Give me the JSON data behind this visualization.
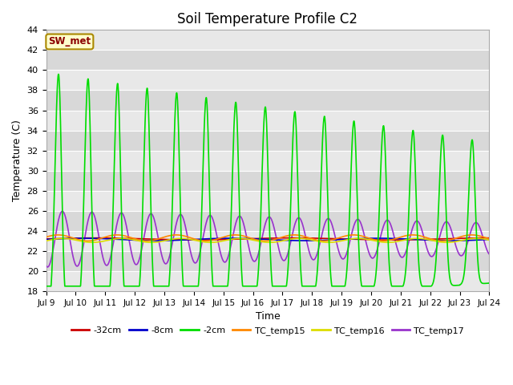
{
  "title": "Soil Temperature Profile C2",
  "xlabel": "Time",
  "ylabel": "Temperature (C)",
  "ylim": [
    18,
    44
  ],
  "yticks": [
    18,
    20,
    22,
    24,
    26,
    28,
    30,
    32,
    34,
    36,
    38,
    40,
    42,
    44
  ],
  "xtick_labels": [
    "Jul 9",
    "Jul 10",
    "Jul 11",
    "Jul 12",
    "Jul 13",
    "Jul 14",
    "Jul 15",
    "Jul 16",
    "Jul 17",
    "Jul 18",
    "Jul 19",
    "Jul 20",
    "Jul 21",
    "Jul 22",
    "Jul 23",
    "Jul 24"
  ],
  "series": {
    "neg32cm": {
      "color": "#cc0000",
      "linewidth": 1.2,
      "label": "-32cm"
    },
    "neg8cm": {
      "color": "#0000cc",
      "linewidth": 1.2,
      "label": "-8cm"
    },
    "neg2cm": {
      "color": "#00dd00",
      "linewidth": 1.2,
      "label": "-2cm"
    },
    "tc15": {
      "color": "#ff8800",
      "linewidth": 1.2,
      "label": "TC_temp15"
    },
    "tc16": {
      "color": "#dddd00",
      "linewidth": 1.2,
      "label": "TC_temp16"
    },
    "tc17": {
      "color": "#9933cc",
      "linewidth": 1.2,
      "label": "TC_temp17"
    }
  },
  "annotation_text": "SW_met",
  "annotation_color": "#8b0000",
  "annotation_bg": "#ffffcc",
  "annotation_border": "#aa8800",
  "band_colors": [
    "#e8e8e8",
    "#d8d8d8"
  ],
  "grid_color": "#ffffff",
  "title_fontsize": 12
}
